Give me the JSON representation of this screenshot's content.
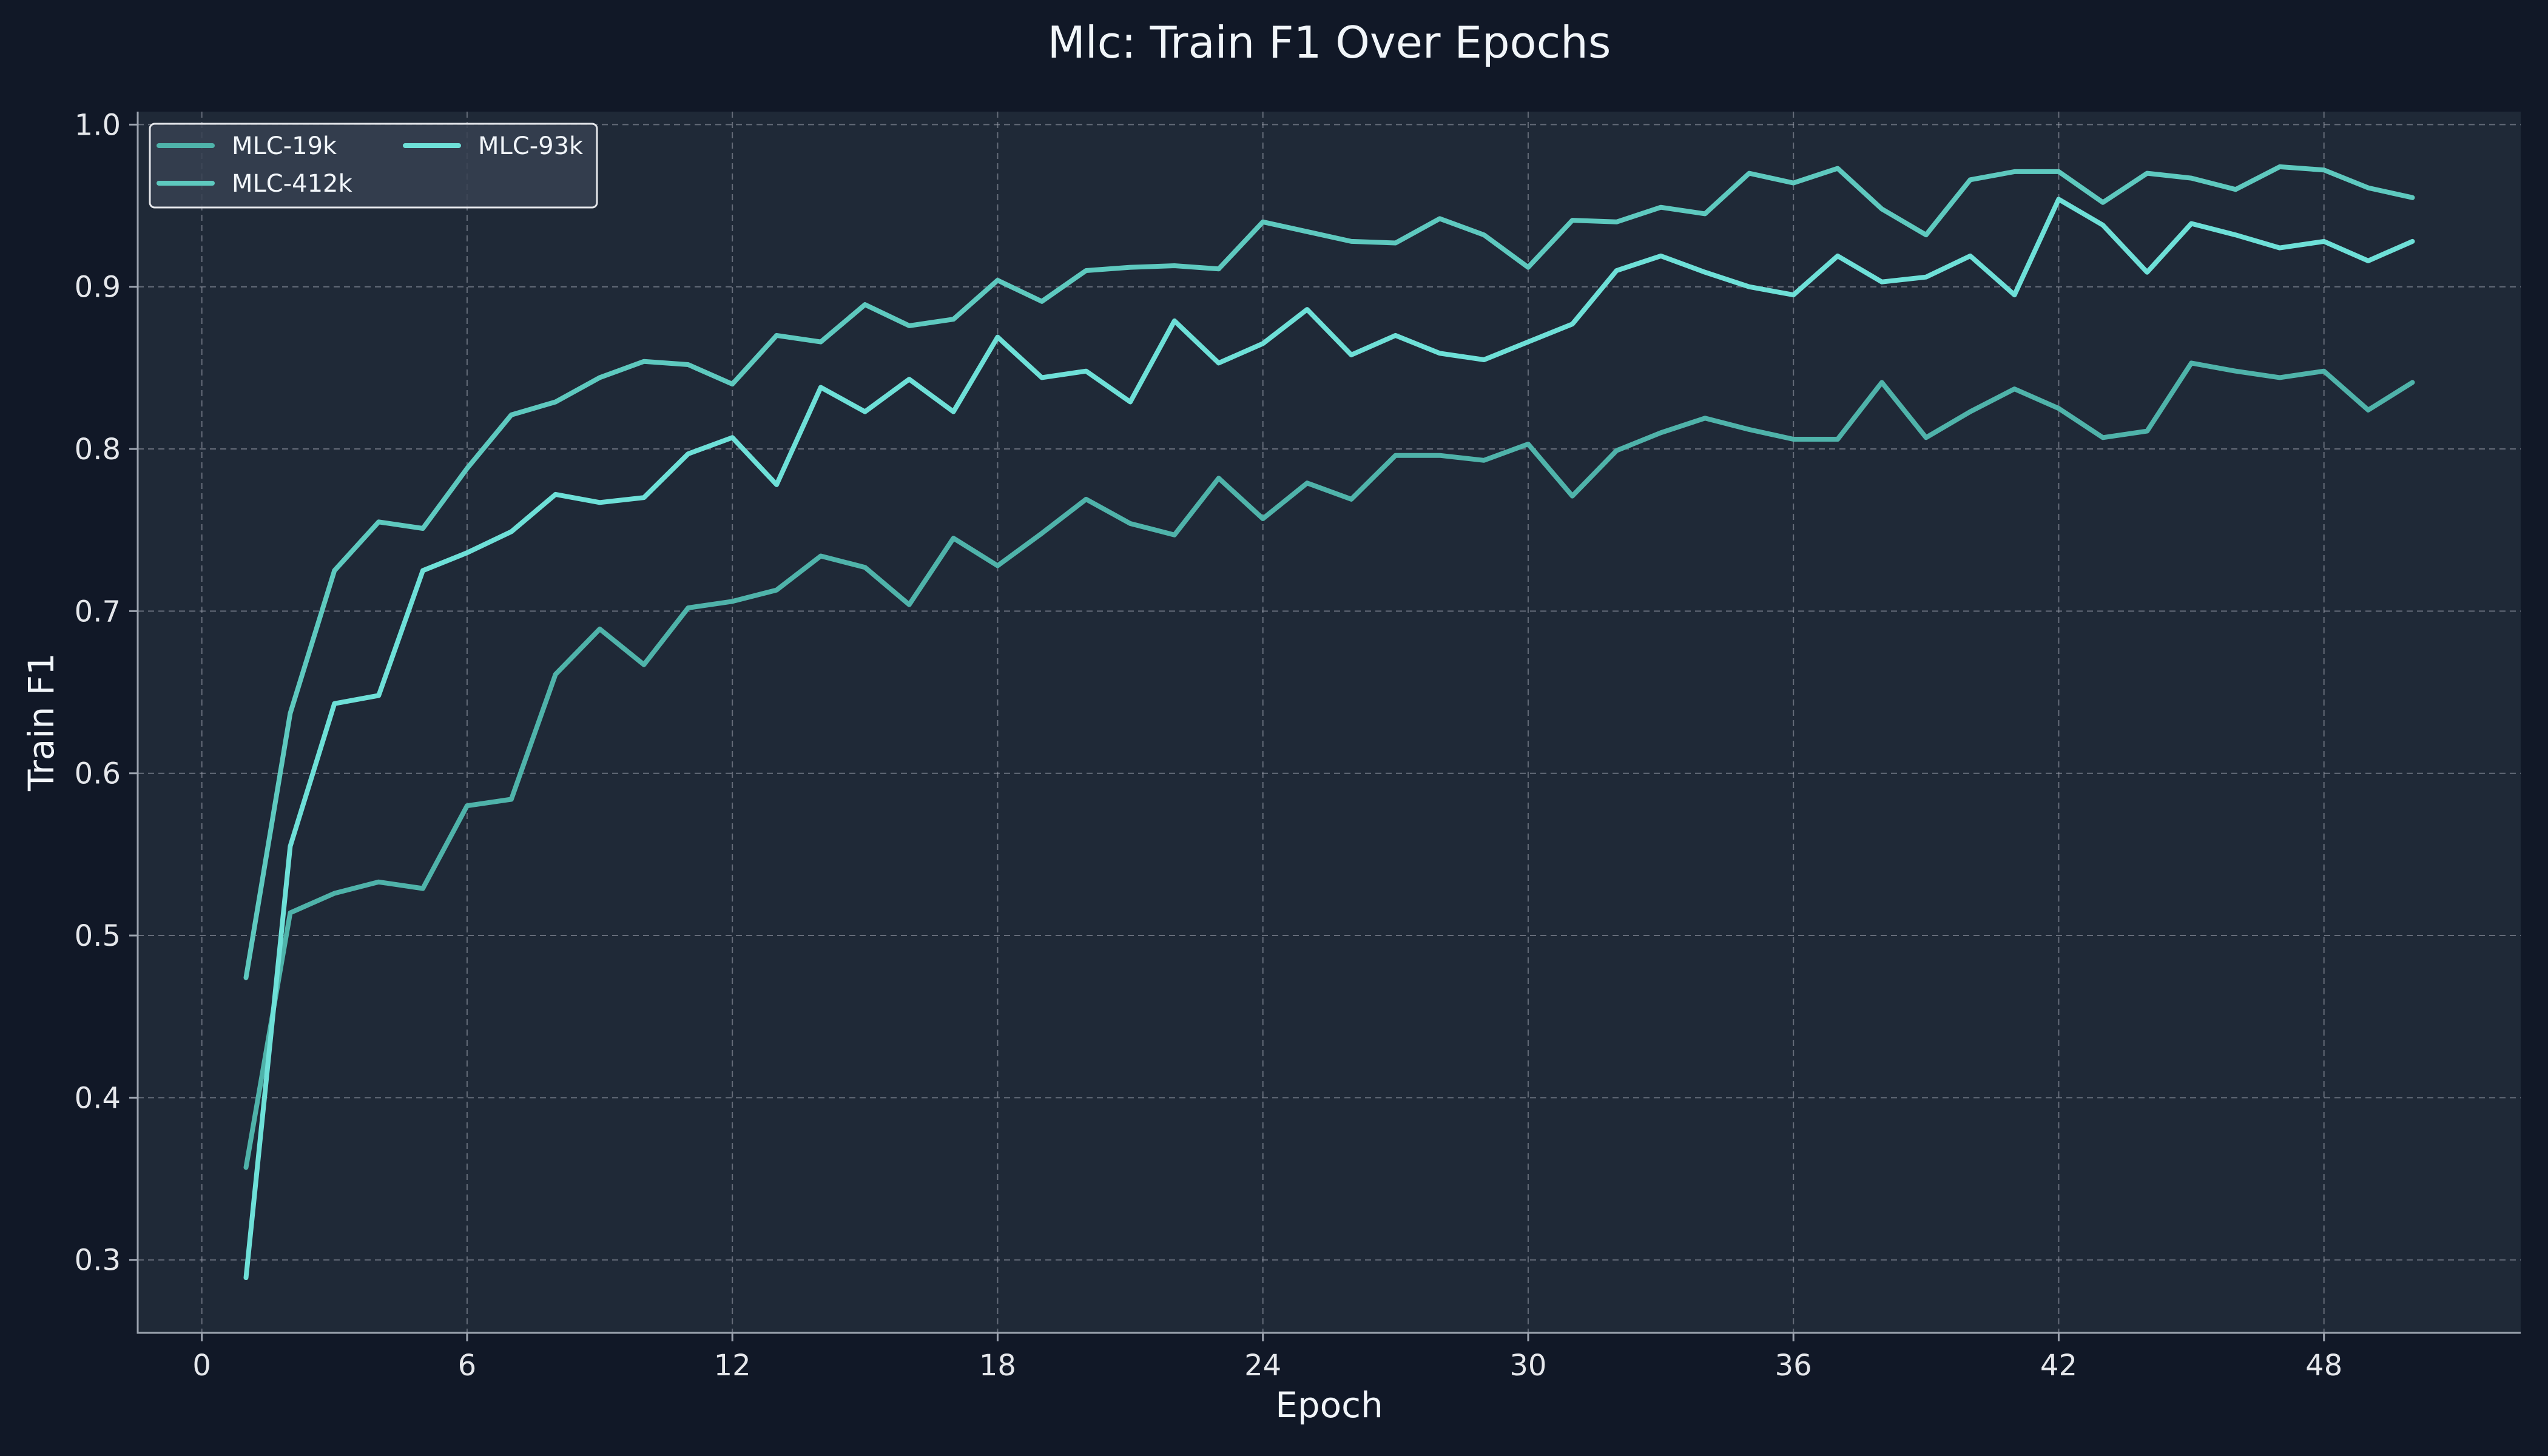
{
  "chart_data": {
    "type": "line",
    "title": "Mlc: Train F1 Over Epochs",
    "xlabel": "Epoch",
    "ylabel": "Train F1",
    "xlim": [
      -1.45,
      52.45
    ],
    "ylim": [
      0.255,
      1.008
    ],
    "xticks": [
      0,
      6,
      12,
      18,
      24,
      30,
      36,
      42,
      48
    ],
    "yticks": [
      0.3,
      0.4,
      0.5,
      0.6,
      0.7,
      0.8,
      0.9,
      1.0
    ],
    "grid": true,
    "legend_position": "top-left",
    "legend_columns": 2,
    "x": [
      1,
      2,
      3,
      4,
      5,
      6,
      7,
      8,
      9,
      10,
      11,
      12,
      13,
      14,
      15,
      16,
      17,
      18,
      19,
      20,
      21,
      22,
      23,
      24,
      25,
      26,
      27,
      28,
      29,
      30,
      31,
      32,
      33,
      34,
      35,
      36,
      37,
      38,
      39,
      40,
      41,
      42,
      43,
      44,
      45,
      46,
      47,
      48,
      49,
      50
    ],
    "series": [
      {
        "name": "MLC-19k",
        "color": "#4fb3aa",
        "values": [
          0.357,
          0.514,
          0.526,
          0.533,
          0.529,
          0.58,
          0.584,
          0.661,
          0.689,
          0.667,
          0.702,
          0.706,
          0.713,
          0.734,
          0.727,
          0.704,
          0.745,
          0.728,
          0.748,
          0.769,
          0.754,
          0.747,
          0.782,
          0.757,
          0.779,
          0.769,
          0.796,
          0.796,
          0.793,
          0.803,
          0.771,
          0.799,
          0.81,
          0.819,
          0.812,
          0.806,
          0.806,
          0.841,
          0.807,
          0.823,
          0.837,
          0.825,
          0.807,
          0.811,
          0.853,
          0.848,
          0.844,
          0.848,
          0.824,
          0.841
        ]
      },
      {
        "name": "MLC-412k",
        "color": "#5ec9bf",
        "values": [
          0.474,
          0.637,
          0.725,
          0.755,
          0.751,
          0.788,
          0.821,
          0.829,
          0.844,
          0.854,
          0.852,
          0.84,
          0.87,
          0.866,
          0.889,
          0.876,
          0.88,
          0.904,
          0.891,
          0.91,
          0.912,
          0.913,
          0.911,
          0.94,
          0.934,
          0.928,
          0.927,
          0.942,
          0.932,
          0.912,
          0.941,
          0.94,
          0.949,
          0.945,
          0.97,
          0.964,
          0.973,
          0.948,
          0.932,
          0.966,
          0.971,
          0.971,
          0.952,
          0.97,
          0.967,
          0.96,
          0.974,
          0.972,
          0.961,
          0.955
        ]
      },
      {
        "name": "MLC-93k",
        "color": "#6ee0d8",
        "values": [
          0.289,
          0.555,
          0.643,
          0.648,
          0.725,
          0.736,
          0.749,
          0.772,
          0.767,
          0.77,
          0.797,
          0.807,
          0.778,
          0.838,
          0.823,
          0.843,
          0.823,
          0.869,
          0.844,
          0.848,
          0.829,
          0.879,
          0.853,
          0.865,
          0.886,
          0.858,
          0.87,
          0.859,
          0.855,
          0.866,
          0.877,
          0.91,
          0.919,
          0.909,
          0.9,
          0.895,
          0.919,
          0.903,
          0.906,
          0.919,
          0.895,
          0.954,
          0.938,
          0.909,
          0.939,
          0.932,
          0.924,
          0.928,
          0.916,
          0.928
        ]
      }
    ]
  }
}
